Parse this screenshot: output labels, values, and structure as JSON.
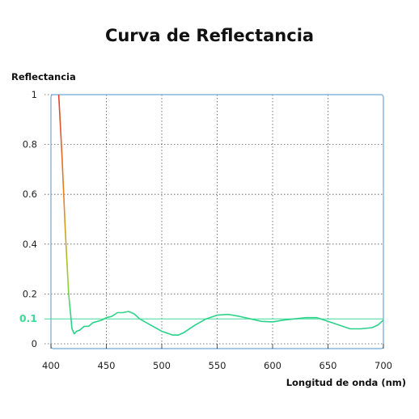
{
  "chart_data": {
    "type": "line",
    "title": "Curva de Reflectancia",
    "ylabel": "Reflectancia",
    "xlabel": "Longitud de onda (nm)",
    "xlim": [
      400,
      700
    ],
    "ylim": [
      0,
      1
    ],
    "x_ticks": [
      "400",
      "450",
      "500",
      "550",
      "600",
      "650",
      "700"
    ],
    "y_ticks": [
      "0",
      "0.2",
      "0.4",
      "0.6",
      "0.8",
      "1"
    ],
    "grid": true,
    "reference_line": {
      "value": 0.1,
      "label": "0.1",
      "color": "#3ddc97"
    },
    "series": [
      {
        "x": [
          407,
          410,
          413,
          416,
          419,
          421,
          423,
          426,
          430,
          434,
          438,
          442,
          446,
          450,
          455,
          460,
          465,
          470,
          475,
          480,
          490,
          500,
          510,
          515,
          520,
          530,
          540,
          550,
          560,
          570,
          580,
          590,
          600,
          610,
          620,
          630,
          640,
          650,
          660,
          670,
          680,
          690,
          695,
          700
        ],
        "y": [
          1.0,
          0.75,
          0.45,
          0.2,
          0.06,
          0.04,
          0.05,
          0.055,
          0.07,
          0.07,
          0.085,
          0.09,
          0.095,
          0.105,
          0.11,
          0.125,
          0.125,
          0.13,
          0.12,
          0.1,
          0.075,
          0.05,
          0.035,
          0.035,
          0.045,
          0.075,
          0.1,
          0.115,
          0.118,
          0.11,
          0.1,
          0.09,
          0.088,
          0.095,
          0.1,
          0.105,
          0.105,
          0.09,
          0.075,
          0.06,
          0.06,
          0.065,
          0.075,
          0.095
        ]
      }
    ]
  }
}
